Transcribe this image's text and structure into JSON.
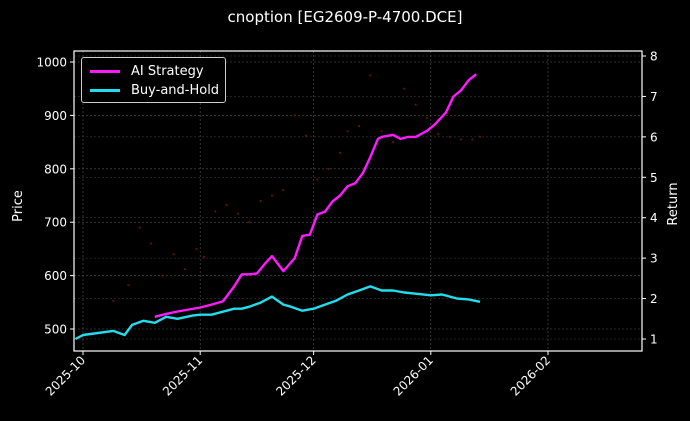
{
  "chart_data": {
    "type": "line",
    "title": "cnoption [EG2609-P-4700.DCE]",
    "xlabel": "",
    "ylabel": "Price",
    "ylabel_right": "Return",
    "ylim": [
      457,
      1020
    ],
    "ylim_right": [
      0.7,
      8.15
    ],
    "xlim": [
      "2025-09-28",
      "2026-02-28"
    ],
    "grid": true,
    "legend_position": "upper left",
    "x_ticks": [
      "2025-10",
      "2025-11",
      "2025-12",
      "2026-01",
      "2026-02"
    ],
    "y_ticks_left": [
      500,
      600,
      700,
      800,
      900,
      1000
    ],
    "y_ticks_right": [
      1,
      2,
      3,
      4,
      5,
      6,
      7,
      8
    ],
    "series": [
      {
        "name": "AI Strategy",
        "axis": "right",
        "color": "#ff1aff",
        "x": [
          "2025-10-20",
          "2025-10-23",
          "2025-10-26",
          "2025-10-29",
          "2025-11-01",
          "2025-11-04",
          "2025-11-07",
          "2025-11-10",
          "2025-11-12",
          "2025-11-14",
          "2025-11-16",
          "2025-11-18",
          "2025-11-20",
          "2025-11-23",
          "2025-11-26",
          "2025-11-28",
          "2025-11-30",
          "2025-12-02",
          "2025-12-04",
          "2025-12-06",
          "2025-12-08",
          "2025-12-10",
          "2025-12-12",
          "2025-12-14",
          "2025-12-16",
          "2025-12-18",
          "2025-12-19",
          "2025-12-22",
          "2025-12-24",
          "2025-12-26",
          "2025-12-28",
          "2025-12-31",
          "2026-01-02",
          "2026-01-05",
          "2026-01-07",
          "2026-01-09",
          "2026-01-11",
          "2026-01-13"
        ],
        "values": [
          1.55,
          1.62,
          1.68,
          1.73,
          1.78,
          1.85,
          1.93,
          2.3,
          2.6,
          2.6,
          2.62,
          2.85,
          3.05,
          2.68,
          3.0,
          3.55,
          3.58,
          4.08,
          4.15,
          4.4,
          4.55,
          4.78,
          4.85,
          5.1,
          5.5,
          5.95,
          6.0,
          6.05,
          5.95,
          6.0,
          6.0,
          6.15,
          6.3,
          6.6,
          7.0,
          7.15,
          7.4,
          7.55
        ]
      },
      {
        "name": "Buy-and-Hold",
        "axis": "right",
        "color": "#22ddee",
        "x": [
          "2025-09-29",
          "2025-10-01",
          "2025-10-09",
          "2025-10-12",
          "2025-10-14",
          "2025-10-17",
          "2025-10-20",
          "2025-10-23",
          "2025-10-26",
          "2025-10-30",
          "2025-11-01",
          "2025-11-04",
          "2025-11-06",
          "2025-11-08",
          "2025-11-10",
          "2025-11-12",
          "2025-11-14",
          "2025-11-17",
          "2025-11-20",
          "2025-11-23",
          "2025-11-25",
          "2025-11-28",
          "2025-12-01",
          "2025-12-04",
          "2025-12-07",
          "2025-12-10",
          "2025-12-13",
          "2025-12-16",
          "2025-12-19",
          "2025-12-22",
          "2025-12-25",
          "2025-12-28",
          "2026-01-01",
          "2026-01-04",
          "2026-01-08",
          "2026-01-11",
          "2026-01-14"
        ],
        "values": [
          1.0,
          1.1,
          1.2,
          1.1,
          1.35,
          1.45,
          1.4,
          1.55,
          1.5,
          1.58,
          1.6,
          1.6,
          1.65,
          1.7,
          1.75,
          1.75,
          1.8,
          1.9,
          2.05,
          1.85,
          1.8,
          1.7,
          1.75,
          1.85,
          1.95,
          2.1,
          2.2,
          2.3,
          2.2,
          2.2,
          2.15,
          2.12,
          2.08,
          2.1,
          2.0,
          1.98,
          1.92
        ]
      },
      {
        "name": "Price",
        "axis": "left",
        "type": "scatter",
        "color": "#661111",
        "x": [
          "2025-10-09",
          "2025-10-13",
          "2025-10-16",
          "2025-10-19",
          "2025-10-22",
          "2025-10-25",
          "2025-10-28",
          "2025-10-31",
          "2025-11-02",
          "2025-11-05",
          "2025-11-08",
          "2025-11-11",
          "2025-11-14",
          "2025-11-17",
          "2025-11-20",
          "2025-11-23",
          "2025-11-26",
          "2025-11-29",
          "2025-12-02",
          "2025-12-05",
          "2025-12-08",
          "2025-12-10",
          "2025-12-13",
          "2025-12-16",
          "2025-12-19",
          "2025-12-22",
          "2025-12-25",
          "2025-12-28",
          "2025-12-31",
          "2026-01-03",
          "2026-01-06",
          "2026-01-09",
          "2026-01-12",
          "2026-01-14"
        ],
        "values": [
          553,
          582,
          690,
          660,
          600,
          640,
          612,
          650,
          635,
          720,
          732,
          716,
          700,
          740,
          750,
          760,
          900,
          862,
          780,
          800,
          830,
          870,
          880,
          975,
          870,
          850,
          950,
          920,
          895,
          865,
          860,
          855,
          855,
          860
        ]
      }
    ]
  },
  "legend": {
    "items": [
      {
        "label": "AI Strategy",
        "color": "#ff1aff"
      },
      {
        "label": "Buy-and-Hold",
        "color": "#22ddee"
      }
    ]
  }
}
